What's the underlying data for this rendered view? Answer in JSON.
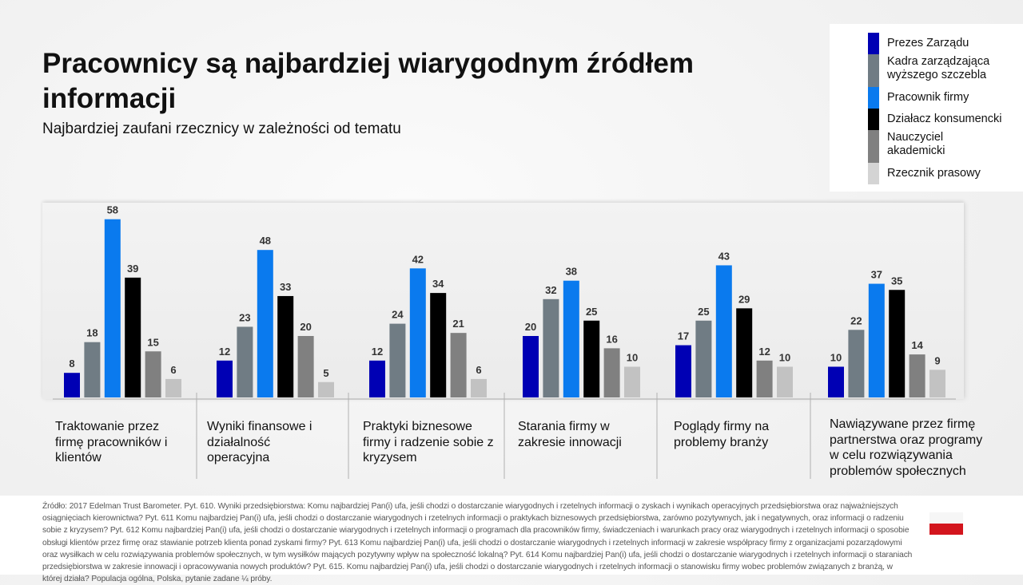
{
  "header": {
    "title": "Pracownicy są najbardziej wiarygodnym źródłem informacji",
    "subtitle": "Najbardziej zaufani rzecznicy w zależności od tematu"
  },
  "chart_data": {
    "type": "bar",
    "title": "Pracownicy są najbardziej wiarygodnym źródłem informacji",
    "subtitle": "Najbardziej zaufani rzecznicy w zależności od tematu",
    "xlabel": "",
    "ylabel": "",
    "ylim": [
      0,
      60
    ],
    "grid": false,
    "legend_position": "top-right",
    "categories": [
      "Traktowanie przez firmę pracowników i klientów",
      "Wyniki finansowe i działalność operacyjna",
      "Praktyki biznesowe firmy i radzenie sobie z kryzysem",
      "Starania firmy w zakresie innowacji",
      "Poglądy firmy na problemy branży",
      "Nawiązywane przez firmę partnerstwa oraz programy w celu rozwiązywania problemów społecznych"
    ],
    "series": [
      {
        "name": "Prezes Zarządu",
        "color": "#0000b4",
        "values": [
          8,
          12,
          12,
          20,
          17,
          10
        ]
      },
      {
        "name": "Kadra zarządzająca wyższego szczebla",
        "color": "#707c84",
        "values": [
          18,
          23,
          24,
          32,
          25,
          22
        ]
      },
      {
        "name": "Pracownik firmy",
        "color": "#0a7aee",
        "values": [
          58,
          48,
          42,
          38,
          43,
          37
        ]
      },
      {
        "name": "Działacz konsumencki",
        "color": "#000000",
        "values": [
          39,
          33,
          34,
          25,
          29,
          35
        ]
      },
      {
        "name": "Nauczyciel akademicki",
        "color": "#808080",
        "values": [
          15,
          20,
          21,
          16,
          12,
          14
        ]
      },
      {
        "name": "Rzecznik prasowy",
        "color": "#c2c2c2",
        "values": [
          6,
          5,
          6,
          10,
          10,
          9
        ]
      }
    ]
  },
  "legend": {
    "items": [
      {
        "label": "Prezes Zarządu",
        "color": "#0000b4"
      },
      {
        "label": "Kadra zarządzająca wyższego szczebla",
        "color": "#707c84"
      },
      {
        "label": "Pracownik firmy",
        "color": "#0a7aee"
      },
      {
        "label": "Działacz konsumencki",
        "color": "#000000"
      },
      {
        "label": "Nauczyciel akademicki",
        "color": "#808080"
      },
      {
        "label": "Rzecznik prasowy",
        "color": "#d4d4d4"
      }
    ]
  },
  "category_labels": [
    "Traktowanie przez firmę pracowników i klientów",
    "Wyniki finansowe i działalność operacyjna",
    "Praktyki biznesowe firmy i radzenie sobie z kryzysem",
    "Starania firmy w zakresie innowacji",
    "Poglądy firmy na problemy branży",
    "Nawiązywane przez firmę partnerstwa oraz programy w celu rozwiązywania problemów społecznych"
  ],
  "footer": {
    "source": "Źródło: 2017 Edelman Trust Barometer. Pyt. 610. Wyniki przedsiębiorstwa: Komu najbardziej Pan(i) ufa, jeśli chodzi o dostarczanie wiarygodnych i rzetelnych informacji o zyskach i wynikach operacyjnych przedsiębiorstwa oraz najważniejszych osiągnięciach kierownictwa? Pyt. 611 Komu najbardziej Pan(i) ufa, jeśli chodzi o dostarczanie wiarygodnych i rzetelnych informacji o praktykach biznesowych przedsiębiorstwa, zarówno pozytywnych, jak i negatywnych, oraz informacji o radzeniu sobie z kryzysem? Pyt. 612 Komu najbardziej Pan(i) ufa, jeśli chodzi o dostarczanie wiarygodnych i rzetelnych informacji o programach dla pracowników firmy, świadczeniach i warunkach pracy oraz wiarygodnych i rzetelnych informacji o sposobie obsługi klientów przez firmę oraz stawianie potrzeb klienta ponad zyskami firmy? Pyt. 613 Komu najbardziej Pan(i) ufa, jeśli chodzi o dostarczanie wiarygodnych i rzetelnych informacji w zakresie współpracy firmy z organizacjami pozarządowymi oraz wysiłkach w celu rozwiązywania problemów społecznych, w tym wysiłków mających pozytywny wpływ na społeczność lokalną? Pyt. 614 Komu najbardziej Pan(i) ufa, jeśli chodzi o dostarczanie wiarygodnych i rzetelnych informacji o staraniach przedsiębiorstwa w zakresie innowacji i opracowywania nowych produktów? Pyt. 615. Komu najbardziej Pan(i) ufa, jeśli chodzi o dostarczanie wiarygodnych i rzetelnych informacji o stanowisku firmy wobec problemów związanych z branżą, w której działa? Populacja ogólna, Polska, pytanie zadane ¼ próby.",
    "flag_icon": "poland-flag-icon"
  }
}
